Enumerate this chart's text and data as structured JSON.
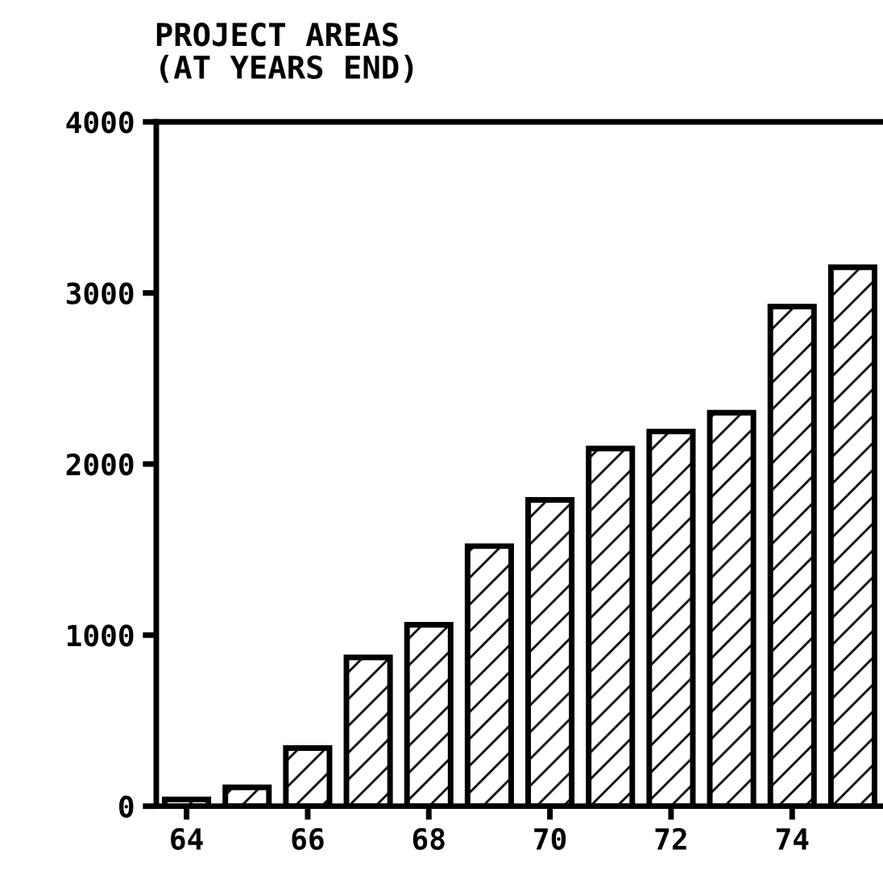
{
  "chart_data": {
    "type": "bar",
    "title": "PROJECT AREAS\n(AT YEARS END)",
    "x": [
      64,
      65,
      66,
      67,
      68,
      69,
      70,
      71,
      72,
      73,
      74,
      75
    ],
    "values": [
      40,
      110,
      340,
      870,
      1060,
      1520,
      1790,
      2090,
      2190,
      2300,
      2920,
      3150
    ],
    "color": "#000000",
    "xlim": [
      63.5,
      75.5
    ],
    "ylim": [
      0,
      4000
    ],
    "xticks": [
      64,
      66,
      68,
      70,
      72,
      74
    ],
    "yticks": [
      0,
      1000,
      2000,
      3000,
      4000
    ],
    "grid": false
  }
}
